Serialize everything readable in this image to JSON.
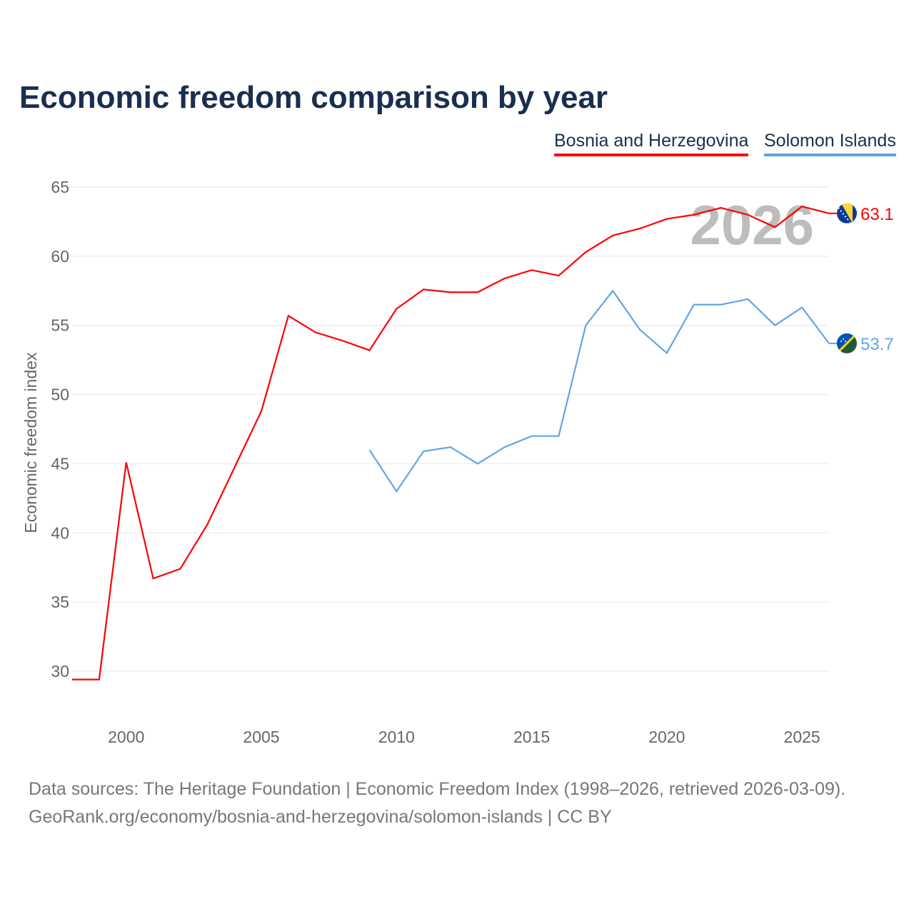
{
  "title": "Economic freedom comparison by year",
  "footer": {
    "line1": "Data sources: The Heritage Foundation | Economic Freedom Index (1998–2026, retrieved 2026-03-09).",
    "line2": "GeoRank.org/economy/bosnia-and-herzegovina/solomon-islands | CC BY"
  },
  "chart_data": {
    "type": "line",
    "title": "Economic freedom comparison by year",
    "ylabel": "Economic freedom index",
    "xlabel": "",
    "ylim": [
      27,
      65
    ],
    "xlim": [
      1998,
      2026
    ],
    "yticks": [
      30,
      35,
      40,
      45,
      50,
      55,
      60,
      65
    ],
    "xticks": [
      2000,
      2005,
      2010,
      2015,
      2020,
      2025
    ],
    "grid": true,
    "legend": "top-right",
    "watermark_year": "2026",
    "series": [
      {
        "name": "Bosnia and Herzegovina",
        "color": "#ff0000",
        "end_label": "63.1",
        "flag": "bosnia-flag",
        "x": [
          1998,
          1999,
          2000,
          2001,
          2002,
          2003,
          2004,
          2005,
          2006,
          2007,
          2008,
          2009,
          2010,
          2011,
          2012,
          2013,
          2014,
          2015,
          2016,
          2017,
          2018,
          2019,
          2020,
          2021,
          2022,
          2023,
          2024,
          2025,
          2026
        ],
        "values": [
          29.4,
          29.4,
          45.1,
          36.7,
          37.4,
          40.6,
          44.7,
          48.8,
          55.7,
          54.5,
          53.9,
          53.2,
          56.2,
          57.6,
          57.4,
          57.4,
          58.4,
          59.0,
          58.6,
          60.3,
          61.5,
          62.0,
          62.7,
          63.0,
          63.5,
          63.0,
          62.1,
          63.6,
          63.1
        ]
      },
      {
        "name": "Solomon Islands",
        "color": "#5ea6e8",
        "end_label": "53.7",
        "flag": "solomon-islands-flag",
        "x": [
          2009,
          2010,
          2011,
          2012,
          2013,
          2014,
          2015,
          2016,
          2017,
          2018,
          2019,
          2020,
          2021,
          2022,
          2023,
          2024,
          2025,
          2026
        ],
        "values": [
          46.0,
          43.0,
          45.9,
          46.2,
          45.0,
          46.2,
          47.0,
          47.0,
          55.0,
          57.5,
          54.7,
          53.0,
          56.5,
          56.5,
          56.9,
          55.0,
          56.3,
          53.7
        ]
      }
    ]
  }
}
